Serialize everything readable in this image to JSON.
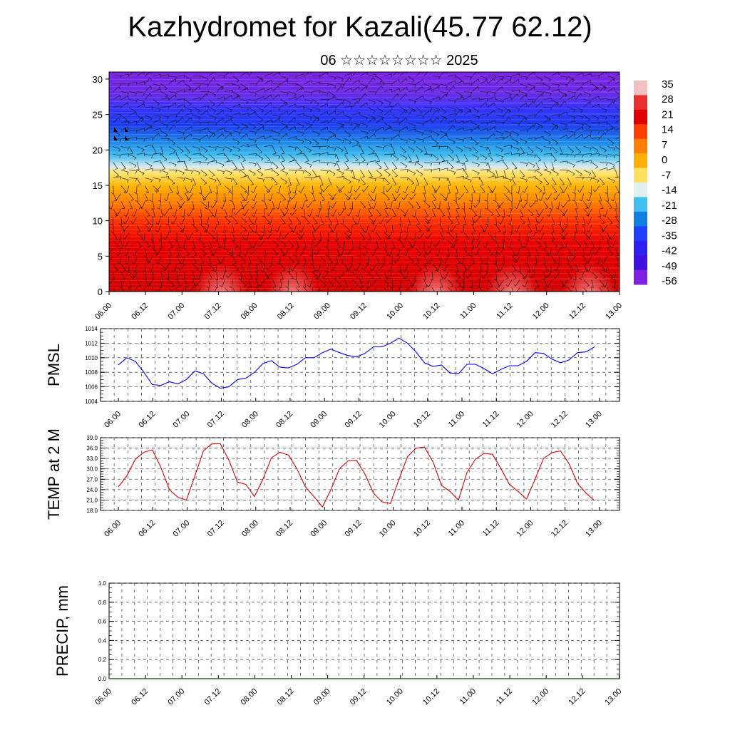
{
  "title": "Kazhydromet for Kazali(45.77 62.12)",
  "subtitle": "06 ☆☆☆☆☆☆☆☆ 2025",
  "time_labels": [
    "06.00",
    "06.12",
    "07.00",
    "07.12",
    "08.00",
    "08.12",
    "09.00",
    "09.12",
    "10.00",
    "10.12",
    "11.00",
    "11.12",
    "12.00",
    "12.12",
    "13.00"
  ],
  "chart_data": [
    {
      "type": "heatmap",
      "ylim": [
        0,
        31
      ],
      "yticks": [
        "0",
        "5",
        "10",
        "15",
        "20",
        "25",
        "30"
      ],
      "x": [
        "06.00",
        "06.12",
        "07.00",
        "07.12",
        "08.00",
        "08.12",
        "09.00",
        "09.12",
        "10.00",
        "10.12",
        "11.00",
        "11.12",
        "12.00",
        "12.12",
        "13.00"
      ],
      "colorbar": {
        "labels": [
          "35",
          "28",
          "21",
          "14",
          "7",
          "0",
          "-7",
          "-14",
          "-21",
          "-28",
          "-35",
          "-42",
          "-49",
          "-56"
        ],
        "colors": [
          "#f2c0c0",
          "#e83030",
          "#e00000",
          "#ff4000",
          "#ff8000",
          "#ffb000",
          "#ffe060",
          "#e0f0f0",
          "#40c0f0",
          "#1080e0",
          "#2040ff",
          "#3020f0",
          "#4010e0",
          "#8020e0"
        ]
      }
    },
    {
      "type": "line",
      "ylabel": "PMSL",
      "ylim": [
        1004,
        1014
      ],
      "yticks": [
        "1004",
        "1006",
        "1008",
        "1010",
        "1012",
        "1014"
      ],
      "color": "#0000ff",
      "values": [
        1009.0,
        1010.0,
        1009.5,
        1008.0,
        1006.3,
        1006.2,
        1006.7,
        1006.4,
        1007.0,
        1008.2,
        1007.8,
        1006.5,
        1005.8,
        1006.0,
        1007.0,
        1007.2,
        1008.0,
        1009.2,
        1009.6,
        1008.7,
        1008.6,
        1009.1,
        1010.0,
        1010.0,
        1010.7,
        1011.2,
        1010.7,
        1010.3,
        1010.1,
        1010.6,
        1011.5,
        1011.5,
        1012.0,
        1012.7,
        1012.0,
        1010.8,
        1009.3,
        1008.8,
        1009.0,
        1007.9,
        1007.8,
        1009.1,
        1009.1,
        1008.5,
        1007.8,
        1008.4,
        1008.9,
        1008.9,
        1009.5,
        1010.7,
        1010.6,
        1009.8,
        1009.3,
        1009.7,
        1010.7,
        1010.8,
        1011.5
      ]
    },
    {
      "type": "line",
      "ylabel": "TEMP at 2 M",
      "ylim": [
        18,
        39
      ],
      "yticks": [
        "18.0",
        "21.0",
        "24.0",
        "27.0",
        "30.0",
        "33.0",
        "36.0",
        "39.0"
      ],
      "color": "#e00000",
      "values": [
        24.8,
        28.0,
        32.8,
        34.8,
        35.5,
        30.5,
        24.0,
        21.8,
        21.0,
        28.0,
        35.2,
        37.2,
        37.3,
        32.5,
        26.2,
        25.5,
        22.0,
        27.0,
        33.2,
        34.8,
        34.0,
        30.0,
        24.8,
        22.0,
        19.0,
        24.0,
        30.0,
        32.3,
        32.5,
        28.5,
        23.0,
        20.5,
        20.0,
        27.0,
        33.5,
        36.0,
        36.3,
        32.0,
        25.2,
        23.5,
        21.0,
        29.0,
        32.8,
        34.5,
        34.2,
        30.0,
        25.5,
        23.5,
        21.3,
        27.0,
        33.0,
        34.7,
        35.2,
        31.5,
        25.8,
        23.0,
        20.8
      ]
    },
    {
      "type": "bar",
      "ylabel": "PRECIP, mm",
      "ylim": [
        0,
        1
      ],
      "yticks": [
        "0.0",
        "0.2",
        "0.4",
        "0.6",
        "0.8",
        "1.0"
      ],
      "values": [
        0,
        0,
        0,
        0,
        0,
        0,
        0,
        0,
        0,
        0,
        0,
        0,
        0,
        0,
        0,
        0,
        0,
        0,
        0,
        0,
        0,
        0,
        0,
        0,
        0,
        0,
        0,
        0,
        0,
        0,
        0,
        0,
        0,
        0,
        0,
        0,
        0,
        0,
        0,
        0,
        0,
        0,
        0,
        0,
        0,
        0,
        0,
        0,
        0,
        0,
        0,
        0,
        0,
        0,
        0,
        0,
        0
      ]
    }
  ]
}
